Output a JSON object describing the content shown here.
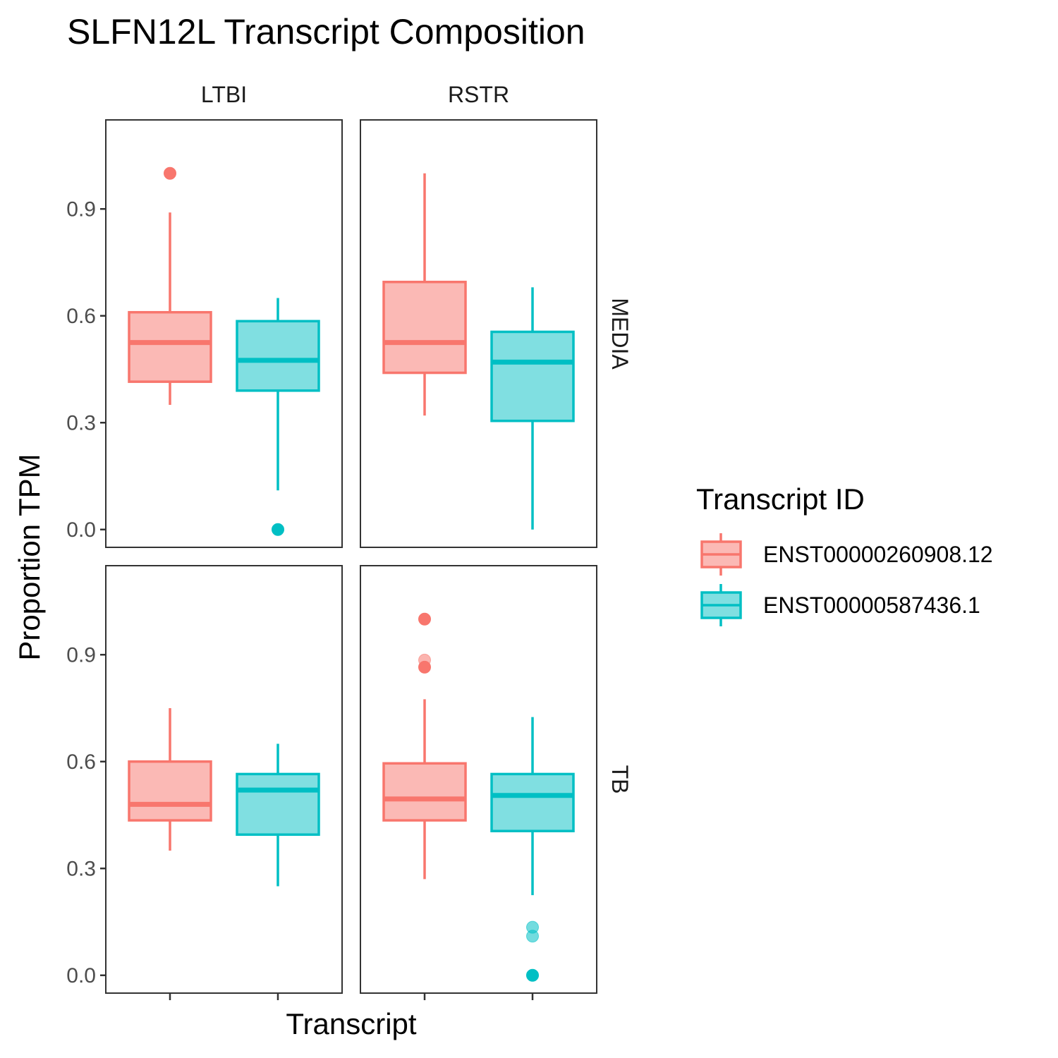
{
  "chart_data": {
    "type": "boxplot",
    "title": "SLFN12L Transcript Composition",
    "xlabel": "Transcript",
    "ylabel": "Proportion TPM",
    "ylim": [
      -0.05,
      1.15
    ],
    "yticks": [
      "0.0",
      "0.3",
      "0.6",
      "0.9"
    ],
    "ytick_values": [
      0.0,
      0.3,
      0.6,
      0.9
    ],
    "columns": [
      "LTBI",
      "RSTR"
    ],
    "rows": [
      "MEDIA",
      "TB"
    ],
    "grid": false,
    "legend": {
      "title": "Transcript ID",
      "position": "right",
      "entries": [
        "ENST00000260908.12",
        "ENST00000587436.1"
      ]
    },
    "series": [
      {
        "name": "ENST00000260908.12",
        "color": "#F8766D",
        "fill": "#FBB9B5"
      },
      {
        "name": "ENST00000587436.1",
        "color": "#00BFC4",
        "fill": "#80DFE1"
      }
    ],
    "panels": [
      {
        "col": "LTBI",
        "row": "MEDIA",
        "boxes": [
          {
            "series": 0,
            "whisker_low": 0.35,
            "q1": 0.415,
            "median": 0.525,
            "q3": 0.61,
            "whisker_high": 0.89,
            "outliers": [
              1.0
            ]
          },
          {
            "series": 1,
            "whisker_low": 0.11,
            "q1": 0.39,
            "median": 0.475,
            "q3": 0.585,
            "whisker_high": 0.65,
            "outliers": [
              0.0
            ]
          }
        ]
      },
      {
        "col": "RSTR",
        "row": "MEDIA",
        "boxes": [
          {
            "series": 0,
            "whisker_low": 0.32,
            "q1": 0.44,
            "median": 0.525,
            "q3": 0.695,
            "whisker_high": 1.0,
            "outliers": []
          },
          {
            "series": 1,
            "whisker_low": 0.0,
            "q1": 0.305,
            "median": 0.47,
            "q3": 0.555,
            "whisker_high": 0.68,
            "outliers": []
          }
        ]
      },
      {
        "col": "LTBI",
        "row": "TB",
        "boxes": [
          {
            "series": 0,
            "whisker_low": 0.35,
            "q1": 0.435,
            "median": 0.48,
            "q3": 0.6,
            "whisker_high": 0.75,
            "outliers": []
          },
          {
            "series": 1,
            "whisker_low": 0.25,
            "q1": 0.395,
            "median": 0.52,
            "q3": 0.565,
            "whisker_high": 0.65,
            "outliers": []
          }
        ]
      },
      {
        "col": "RSTR",
        "row": "TB",
        "boxes": [
          {
            "series": 0,
            "whisker_low": 0.27,
            "q1": 0.435,
            "median": 0.495,
            "q3": 0.595,
            "whisker_high": 0.775,
            "outliers": [
              1.0,
              0.885,
              0.865
            ]
          },
          {
            "series": 1,
            "whisker_low": 0.225,
            "q1": 0.405,
            "median": 0.505,
            "q3": 0.565,
            "whisker_high": 0.725,
            "outliers": [
              0.135,
              0.11,
              0.0
            ]
          }
        ]
      }
    ]
  }
}
